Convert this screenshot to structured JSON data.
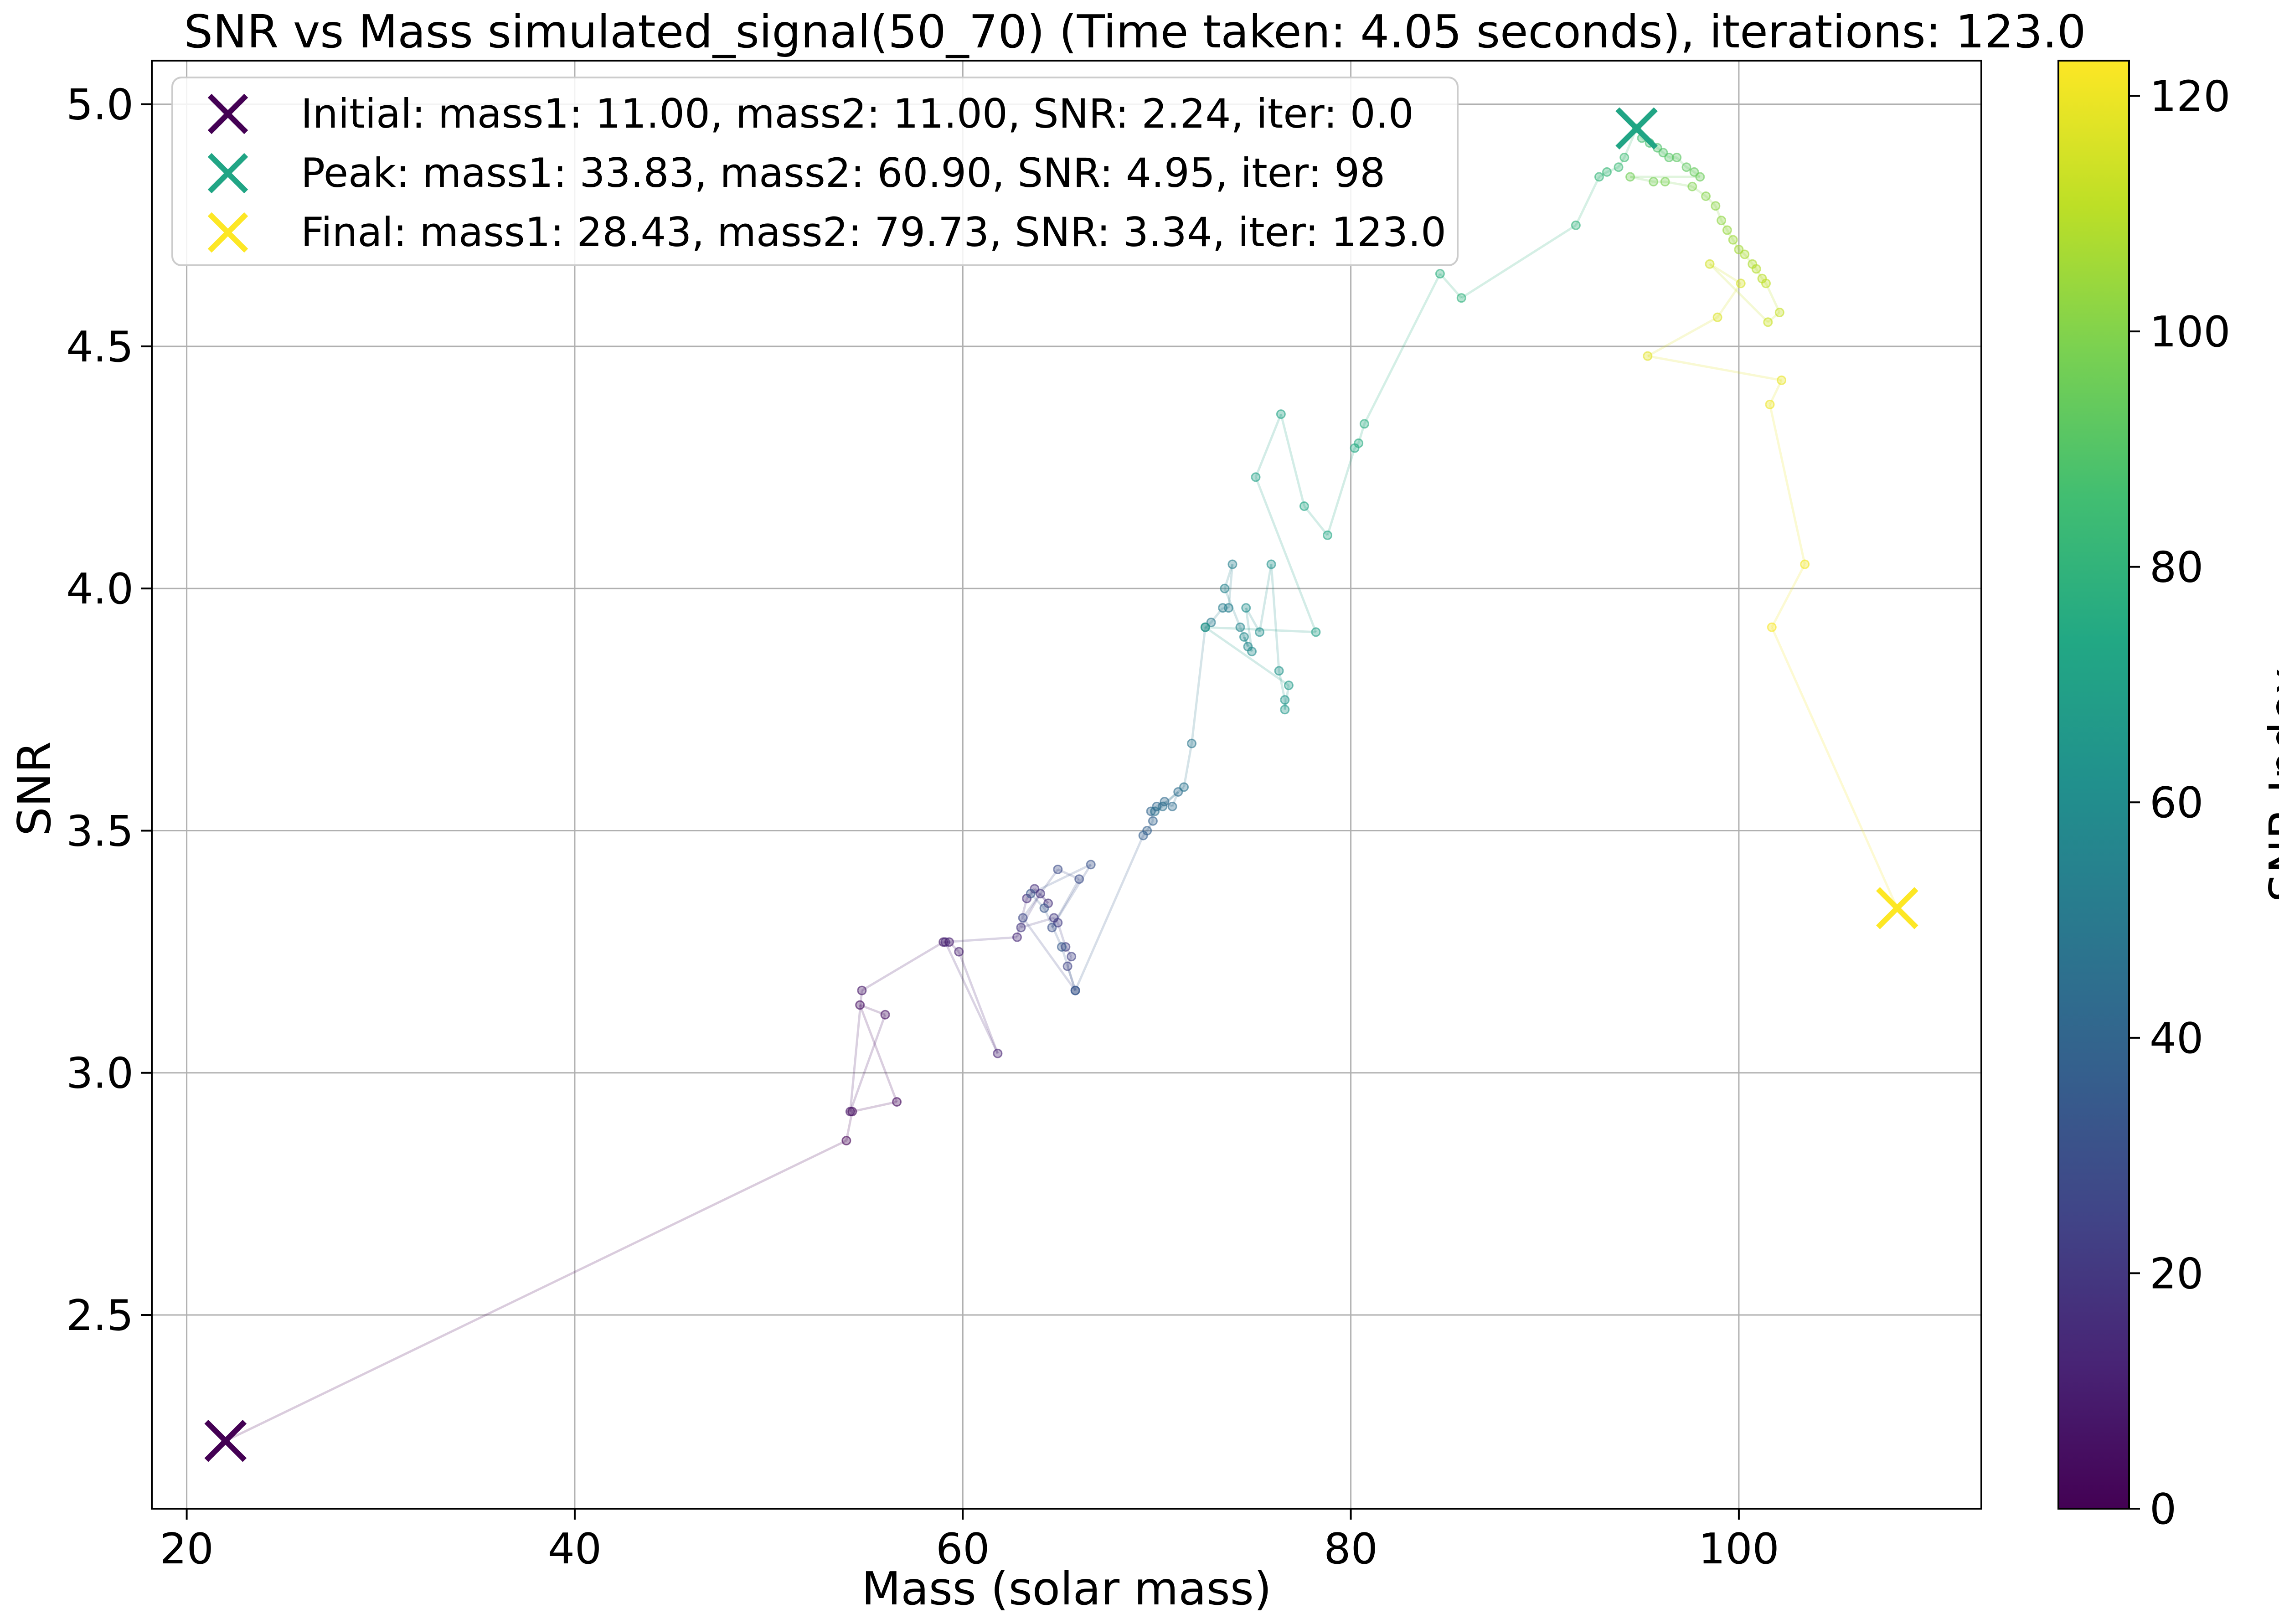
{
  "chart_data": {
    "type": "scatter",
    "title": "SNR vs Mass simulated_signal(50_70) (Time taken: 4.05 seconds), iterations: 123.0",
    "xlabel": "Mass (solar mass)",
    "ylabel": "SNR",
    "xlim": [
      18.2,
      112.5
    ],
    "ylim": [
      2.1,
      5.09
    ],
    "xticks": [
      20,
      40,
      60,
      80,
      100
    ],
    "xtick_labels": [
      "20",
      "40",
      "60",
      "80",
      "100"
    ],
    "yticks": [
      2.5,
      3.0,
      3.5,
      4.0,
      4.5,
      5.0
    ],
    "ytick_labels": [
      "2.5",
      "3.0",
      "3.5",
      "4.0",
      "4.5",
      "5.0"
    ],
    "grid": true,
    "legend_position": "upper-left",
    "colormap": "viridis",
    "colorbar": {
      "label": "SNR Index",
      "range": [
        0,
        123
      ],
      "ticks": [
        0,
        20,
        40,
        60,
        80,
        100,
        120
      ],
      "tick_labels": [
        "0",
        "20",
        "40",
        "60",
        "80",
        "100",
        "120"
      ]
    },
    "markers": [
      {
        "label": "Initial: mass1: 11.00, mass2: 11.00, SNR: 2.24, iter: 0.0",
        "x": 22.0,
        "y": 2.24,
        "color": "#440154"
      },
      {
        "label": "Peak: mass1: 33.83, mass2: 60.90, SNR: 4.95, iter: 98",
        "x": 94.73,
        "y": 4.95,
        "color": "#21a585"
      },
      {
        "label": "Final: mass1: 28.43, mass2: 79.73, SNR: 3.34, iter: 123.0",
        "x": 108.16,
        "y": 3.34,
        "color": "#fde725"
      }
    ],
    "path": [
      [
        22.0,
        2.24
      ],
      [
        54.0,
        2.86
      ],
      [
        54.3,
        2.92
      ],
      [
        56.6,
        2.94
      ],
      [
        54.7,
        3.14
      ],
      [
        56.0,
        3.12
      ],
      [
        54.2,
        2.92
      ],
      [
        54.8,
        3.17
      ],
      [
        59.0,
        3.27
      ],
      [
        59.3,
        3.27
      ],
      [
        59.8,
        3.25
      ],
      [
        61.8,
        3.04
      ],
      [
        59.1,
        3.27
      ],
      [
        62.8,
        3.28
      ],
      [
        63.3,
        3.36
      ],
      [
        63.7,
        3.38
      ],
      [
        64.4,
        3.35
      ],
      [
        64.0,
        3.37
      ],
      [
        63.0,
        3.3
      ],
      [
        64.7,
        3.32
      ],
      [
        64.9,
        3.31
      ],
      [
        65.3,
        3.26
      ],
      [
        65.6,
        3.24
      ],
      [
        65.4,
        3.22
      ],
      [
        65.8,
        3.17
      ],
      [
        63.1,
        3.32
      ],
      [
        64.9,
        3.42
      ],
      [
        66.0,
        3.4
      ],
      [
        64.6,
        3.3
      ],
      [
        66.6,
        3.43
      ],
      [
        63.5,
        3.37
      ],
      [
        64.2,
        3.34
      ],
      [
        65.1,
        3.26
      ],
      [
        65.8,
        3.17
      ],
      [
        69.3,
        3.49
      ],
      [
        69.5,
        3.5
      ],
      [
        69.8,
        3.52
      ],
      [
        69.7,
        3.54
      ],
      [
        70.0,
        3.55
      ],
      [
        70.4,
        3.56
      ],
      [
        70.8,
        3.55
      ],
      [
        71.1,
        3.58
      ],
      [
        70.3,
        3.55
      ],
      [
        69.9,
        3.54
      ],
      [
        71.4,
        3.59
      ],
      [
        71.8,
        3.68
      ],
      [
        72.5,
        3.92
      ],
      [
        72.8,
        3.93
      ],
      [
        73.4,
        3.96
      ],
      [
        73.7,
        3.96
      ],
      [
        73.9,
        4.05
      ],
      [
        73.5,
        4.0
      ],
      [
        74.3,
        3.92
      ],
      [
        74.7,
        3.88
      ],
      [
        74.5,
        3.9
      ],
      [
        74.9,
        3.87
      ],
      [
        74.6,
        3.96
      ],
      [
        75.3,
        3.91
      ],
      [
        75.9,
        4.05
      ],
      [
        76.3,
        3.83
      ],
      [
        76.6,
        3.77
      ],
      [
        76.6,
        3.75
      ],
      [
        76.8,
        3.8
      ],
      [
        72.5,
        3.92
      ],
      [
        78.2,
        3.91
      ],
      [
        75.1,
        4.23
      ],
      [
        76.4,
        4.36
      ],
      [
        77.6,
        4.17
      ],
      [
        78.8,
        4.11
      ],
      [
        80.2,
        4.29
      ],
      [
        80.4,
        4.3
      ],
      [
        80.7,
        4.34
      ],
      [
        84.6,
        4.65
      ],
      [
        85.7,
        4.6
      ],
      [
        91.6,
        4.75
      ],
      [
        92.8,
        4.85
      ],
      [
        93.2,
        4.86
      ],
      [
        93.8,
        4.87
      ],
      [
        94.1,
        4.89
      ],
      [
        94.73,
        4.95
      ],
      [
        95.0,
        4.93
      ],
      [
        95.4,
        4.92
      ],
      [
        95.8,
        4.91
      ],
      [
        96.1,
        4.9
      ],
      [
        96.4,
        4.89
      ],
      [
        96.8,
        4.89
      ],
      [
        97.3,
        4.87
      ],
      [
        97.7,
        4.86
      ],
      [
        98.0,
        4.85
      ],
      [
        94.4,
        4.85
      ],
      [
        95.6,
        4.84
      ],
      [
        96.2,
        4.84
      ],
      [
        97.6,
        4.83
      ],
      [
        98.3,
        4.81
      ],
      [
        98.8,
        4.79
      ],
      [
        99.1,
        4.76
      ],
      [
        99.4,
        4.74
      ],
      [
        99.7,
        4.72
      ],
      [
        100.0,
        4.7
      ],
      [
        100.3,
        4.69
      ],
      [
        100.7,
        4.67
      ],
      [
        100.9,
        4.66
      ],
      [
        101.2,
        4.64
      ],
      [
        101.4,
        4.63
      ],
      [
        102.1,
        4.57
      ],
      [
        101.5,
        4.55
      ],
      [
        98.5,
        4.67
      ],
      [
        100.1,
        4.63
      ],
      [
        98.9,
        4.56
      ],
      [
        95.3,
        4.48
      ],
      [
        102.2,
        4.43
      ],
      [
        101.6,
        4.38
      ],
      [
        103.4,
        4.05
      ],
      [
        101.7,
        3.92
      ],
      [
        108.16,
        3.34
      ]
    ]
  }
}
